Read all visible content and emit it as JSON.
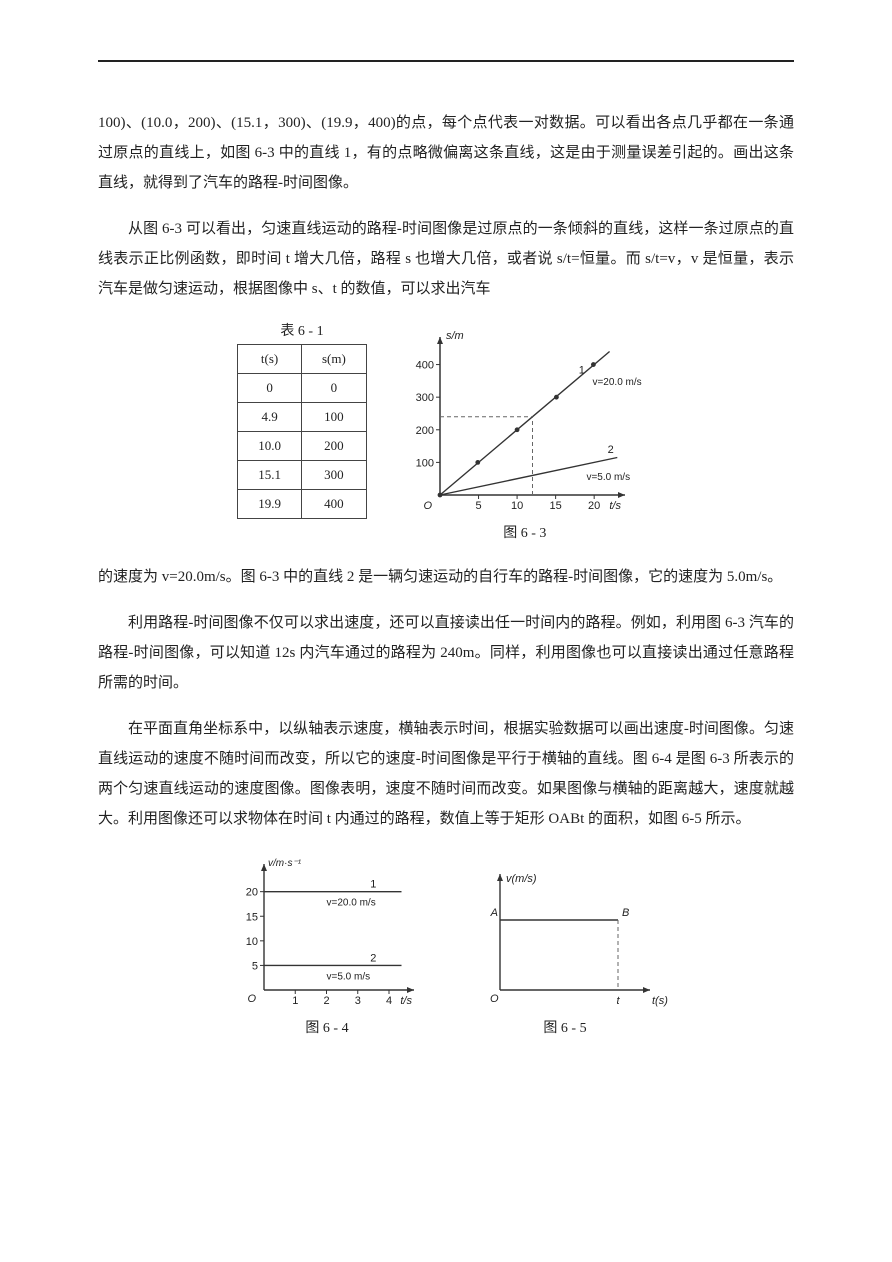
{
  "p1": "100)、(10.0，200)、(15.1，300)、(19.9，400)的点，每个点代表一对数据。可以看出各点几乎都在一条通过原点的直线上，如图 6-3 中的直线 1，有的点略微偏离这条直线，这是由于测量误差引起的。画出这条直线，就得到了汽车的路程-时间图像。",
  "p2": "从图 6-3 可以看出，匀速直线运动的路程-时间图像是过原点的一条倾斜的直线，这样一条过原点的直线表示正比例函数，即时间 t 增大几倍，路程 s 也增大几倍，或者说 s/t=恒量。而 s/t=v，v 是恒量，表示汽车是做匀速运动，根据图像中 s、t 的数值，可以求出汽车",
  "p3": "的速度为 v=20.0m/s。图 6-3 中的直线 2 是一辆匀速运动的自行车的路程-时间图像，它的速度为 5.0m/s。",
  "p4": "利用路程-时间图像不仅可以求出速度，还可以直接读出任一时间内的路程。例如，利用图 6-3 汽车的路程-时间图像，可以知道 12s 内汽车通过的路程为 240m。同样，利用图像也可以直接读出通过任意路程所需的时间。",
  "p5": "在平面直角坐标系中，以纵轴表示速度，横轴表示时间，根据实验数据可以画出速度-时间图像。匀速直线运动的速度不随时间而改变，所以它的速度-时间图像是平行于横轴的直线。图 6-4 是图 6-3 所表示的两个匀速直线运动的速度图像。图像表明，速度不随时间而改变。如果图像与横轴的距离越大，速度就越大。利用图像还可以求物体在时间 t 内通过的路程，数值上等于矩形 OABt 的面积，如图 6-5 所示。",
  "table": {
    "title": "表 6 - 1",
    "head_t": "t(s)",
    "head_s": "s(m)",
    "rows": [
      {
        "t": "0",
        "s": "0"
      },
      {
        "t": "4.9",
        "s": "100"
      },
      {
        "t": "10.0",
        "s": "200"
      },
      {
        "t": "15.1",
        "s": "300"
      },
      {
        "t": "19.9",
        "s": "400"
      }
    ]
  },
  "fig63": {
    "caption": "图 6 - 3",
    "y_label": "s/m",
    "x_label": "t/s",
    "x_ticks": [
      5,
      10,
      15,
      20
    ],
    "y_ticks": [
      100,
      200,
      300,
      400
    ],
    "line1_label": "1",
    "line1_rate": "v=20.0 m/s",
    "line2_label": "2",
    "line2_rate": "v=5.0 m/s",
    "origin": "O",
    "series1": [
      [
        0,
        0
      ],
      [
        4.9,
        100
      ],
      [
        10.0,
        200
      ],
      [
        15.1,
        300
      ],
      [
        19.9,
        400
      ]
    ],
    "series2_v": 5.0,
    "dash_t": 12,
    "dash_s": 240,
    "axis_color": "#333333",
    "line_color": "#333333",
    "dash_color": "#666666"
  },
  "fig64": {
    "caption": "图 6 - 4",
    "y_label": "v/m·s⁻¹",
    "x_label": "t/s",
    "y_ticks": [
      5,
      10,
      15,
      20
    ],
    "x_ticks": [
      1,
      2,
      3,
      4
    ],
    "line1_label": "1",
    "line1_text": "v=20.0 m/s",
    "line1_v": 20,
    "line2_label": "2",
    "line2_text": "v=5.0 m/s",
    "line2_v": 5,
    "origin": "O",
    "axis_color": "#333333"
  },
  "fig65": {
    "caption": "图 6 - 5",
    "y_label": "v(m/s)",
    "x_label": "t(s)",
    "A": "A",
    "B": "B",
    "O": "O",
    "t": "t",
    "axis_color": "#333333",
    "dash_color": "#666666"
  }
}
